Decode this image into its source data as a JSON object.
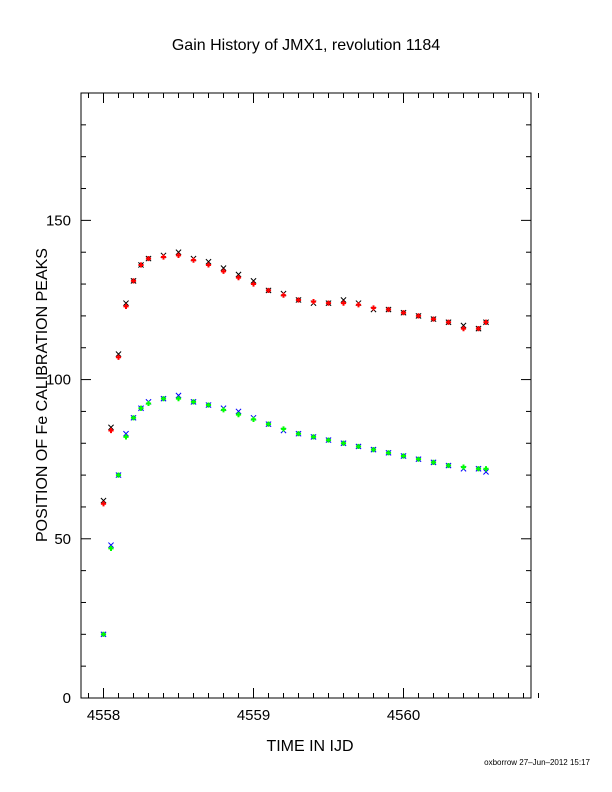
{
  "chart_data": {
    "type": "scatter",
    "title": "Gain History of JMX1, revolution 1184",
    "xlabel": "TIME IN IJD",
    "ylabel": "POSITION OF Fe CALIBRATION PEAKS",
    "xlim": [
      4557.85,
      4560.85
    ],
    "ylim": [
      0,
      190
    ],
    "x_ticks": [
      4558,
      4559,
      4560
    ],
    "y_ticks": [
      0,
      50,
      100,
      150
    ],
    "grid": false,
    "series": [
      {
        "color": "#000000",
        "marker": "x",
        "x": [
          4558.0,
          4558.05,
          4558.1,
          4558.15,
          4558.2,
          4558.25,
          4558.3,
          4558.4,
          4558.5,
          4558.6,
          4558.7,
          4558.8,
          4558.9,
          4559.0,
          4559.1,
          4559.2,
          4559.3,
          4559.4,
          4559.5,
          4559.6,
          4559.7,
          4559.8,
          4559.9,
          4560.0,
          4560.1,
          4560.2,
          4560.3,
          4560.4,
          4560.5,
          4560.55
        ],
        "y": [
          62,
          85,
          108,
          124,
          131,
          136,
          138,
          139,
          140,
          138,
          137,
          135,
          133,
          131,
          128,
          127,
          125,
          124,
          124,
          125,
          124,
          122,
          122,
          121,
          120,
          119,
          118,
          117,
          116,
          118
        ]
      },
      {
        "color": "#ff0000",
        "marker": "+",
        "x": [
          4558.0,
          4558.05,
          4558.1,
          4558.15,
          4558.2,
          4558.25,
          4558.3,
          4558.4,
          4558.5,
          4558.6,
          4558.7,
          4558.8,
          4558.9,
          4559.0,
          4559.1,
          4559.2,
          4559.3,
          4559.4,
          4559.5,
          4559.6,
          4559.7,
          4559.8,
          4559.9,
          4560.0,
          4560.1,
          4560.2,
          4560.3,
          4560.4,
          4560.5,
          4560.55
        ],
        "y": [
          61,
          84,
          107,
          123,
          131,
          136,
          138,
          138.5,
          139,
          137.5,
          136,
          134,
          132,
          130,
          128,
          126.5,
          125,
          124.5,
          124,
          124,
          123.5,
          122.5,
          122,
          121,
          120,
          119,
          118,
          116,
          116,
          118
        ]
      },
      {
        "color": "#0000ff",
        "marker": "x",
        "x": [
          4558.0,
          4558.05,
          4558.1,
          4558.15,
          4558.2,
          4558.25,
          4558.3,
          4558.4,
          4558.5,
          4558.6,
          4558.7,
          4558.8,
          4558.9,
          4559.0,
          4559.1,
          4559.2,
          4559.3,
          4559.4,
          4559.5,
          4559.6,
          4559.7,
          4559.8,
          4559.9,
          4560.0,
          4560.1,
          4560.2,
          4560.3,
          4560.4,
          4560.5,
          4560.55
        ],
        "y": [
          20,
          48,
          70,
          83,
          88,
          91,
          93,
          94,
          95,
          93,
          92,
          91,
          90,
          88,
          86,
          84,
          83,
          82,
          81,
          80,
          79,
          78,
          77,
          76,
          75,
          74,
          73,
          72,
          72,
          71
        ]
      },
      {
        "color": "#00ff00",
        "marker": "+",
        "x": [
          4558.0,
          4558.05,
          4558.1,
          4558.15,
          4558.2,
          4558.25,
          4558.3,
          4558.4,
          4558.5,
          4558.6,
          4558.7,
          4558.8,
          4558.9,
          4559.0,
          4559.1,
          4559.2,
          4559.3,
          4559.4,
          4559.5,
          4559.6,
          4559.7,
          4559.8,
          4559.9,
          4560.0,
          4560.1,
          4560.2,
          4560.3,
          4560.4,
          4560.5,
          4560.55
        ],
        "y": [
          20,
          47,
          70,
          82,
          88,
          91,
          92.5,
          94,
          94,
          93,
          92,
          90.5,
          89,
          87.5,
          86,
          84.5,
          83,
          82,
          81,
          80,
          79,
          78,
          77,
          76,
          75,
          74,
          73,
          72.5,
          72,
          72
        ]
      }
    ],
    "footer": "oxborrow 27–Jun–2012 15:17"
  }
}
